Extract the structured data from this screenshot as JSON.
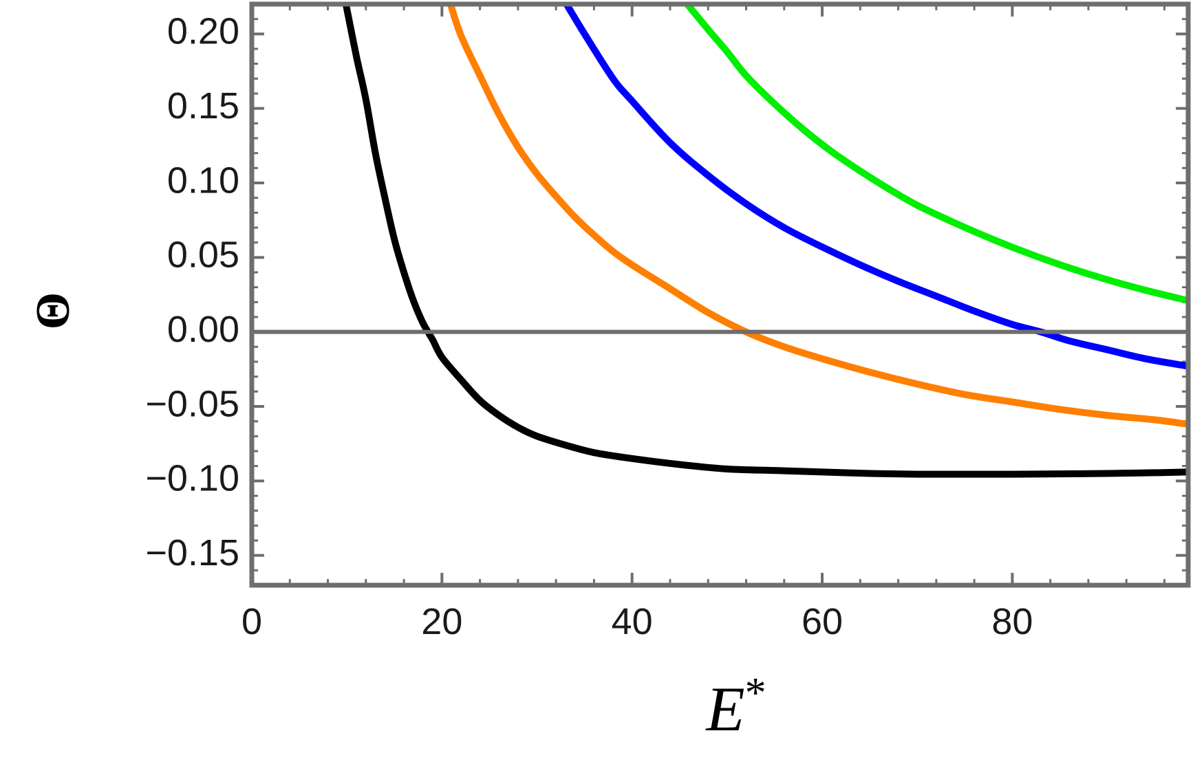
{
  "chart_data": {
    "type": "line",
    "xlabel": "E*",
    "ylabel": "Θ",
    "xlim": [
      0,
      98.5
    ],
    "ylim": [
      -0.17,
      0.22
    ],
    "x_ticks": [
      0,
      20,
      40,
      60,
      80
    ],
    "x_tick_labels": [
      "0",
      "20",
      "40",
      "60",
      "80"
    ],
    "y_ticks": [
      -0.15,
      -0.1,
      -0.05,
      0.0,
      0.05,
      0.1,
      0.15,
      0.2
    ],
    "y_tick_labels": [
      "−0.15",
      "−0.10",
      "−0.05",
      "0.00",
      "0.05",
      "0.10",
      "0.15",
      "0.20"
    ],
    "x_minor_step": 4,
    "y_minor_step": 0.01,
    "grid": false,
    "reference_lines": [
      {
        "axis": "y",
        "value": 0.0,
        "color": "#6e6e6e"
      }
    ],
    "frame_color": "#6e6e6e",
    "series": [
      {
        "color": "#000000",
        "x": [
          9.9,
          11,
          12,
          13,
          14,
          15,
          16,
          17,
          18,
          19,
          20,
          22,
          24,
          26,
          28,
          30,
          33,
          36,
          40,
          45,
          50,
          55,
          60,
          65,
          70,
          75,
          80,
          85,
          90,
          95,
          98.5
        ],
        "y": [
          0.22,
          0.185,
          0.156,
          0.12,
          0.09,
          0.062,
          0.04,
          0.021,
          0.006,
          -0.005,
          -0.017,
          -0.032,
          -0.046,
          -0.056,
          -0.064,
          -0.07,
          -0.076,
          -0.081,
          -0.085,
          -0.089,
          -0.092,
          -0.093,
          -0.094,
          -0.095,
          -0.0955,
          -0.0955,
          -0.0955,
          -0.0953,
          -0.095,
          -0.0945,
          -0.094
        ]
      },
      {
        "color": "#ff7f00",
        "x": [
          20.9,
          22,
          24,
          26,
          28,
          30,
          32,
          34,
          36,
          38,
          40,
          44,
          48,
          52,
          56,
          60,
          65,
          70,
          75,
          80,
          85,
          90,
          95,
          98.5
        ],
        "y": [
          0.22,
          0.199,
          0.172,
          0.146,
          0.124,
          0.106,
          0.091,
          0.077,
          0.065,
          0.054,
          0.045,
          0.029,
          0.013,
          0.0,
          -0.01,
          -0.018,
          -0.027,
          -0.035,
          -0.042,
          -0.047,
          -0.052,
          -0.056,
          -0.059,
          -0.062
        ]
      },
      {
        "color": "#0000ff",
        "x": [
          33.1,
          35,
          38,
          40,
          44,
          48,
          52,
          56,
          60,
          64,
          68,
          72,
          76,
          80,
          83,
          86,
          90,
          94,
          98.5
        ],
        "y": [
          0.22,
          0.2,
          0.17,
          0.155,
          0.127,
          0.105,
          0.086,
          0.07,
          0.057,
          0.045,
          0.034,
          0.024,
          0.014,
          0.005,
          0.0,
          -0.006,
          -0.012,
          -0.018,
          -0.023
        ]
      },
      {
        "color": "#00ee00",
        "x": [
          45.8,
          48,
          50,
          52,
          55,
          58,
          61,
          64,
          67,
          70,
          74,
          78,
          82,
          86,
          90,
          94,
          98.5
        ],
        "y": [
          0.22,
          0.203,
          0.188,
          0.172,
          0.153,
          0.136,
          0.121,
          0.108,
          0.096,
          0.085,
          0.073,
          0.062,
          0.052,
          0.043,
          0.035,
          0.028,
          0.021
        ]
      }
    ]
  }
}
